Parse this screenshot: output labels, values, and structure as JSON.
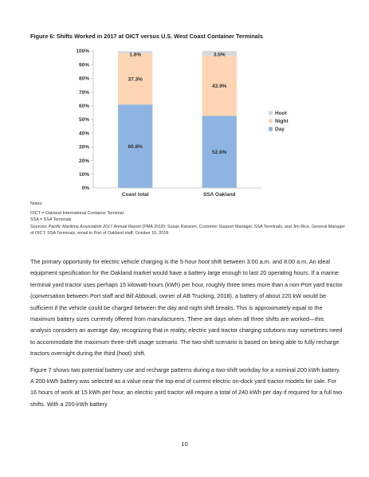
{
  "figure_title": "Figure 6: Shifts Worked in 2017 at OICT versus U.S. West Coast Container Terminals",
  "chart_data": {
    "type": "bar",
    "stacked": true,
    "categories": [
      "Coast total",
      "SSA Oakland"
    ],
    "series": [
      {
        "name": "Day",
        "values": [
          60.8,
          52.6
        ],
        "labels": [
          "60.8%",
          "52.6%"
        ],
        "color": "#8eb4e3"
      },
      {
        "name": "Night",
        "values": [
          37.3,
          43.9
        ],
        "labels": [
          "37.3%",
          "43.9%"
        ],
        "color": "#fcd5b5"
      },
      {
        "name": "Hoot",
        "values": [
          1.8,
          3.5
        ],
        "labels": [
          "1.8%",
          "3.5%"
        ],
        "color": "#d9d9d9"
      }
    ],
    "legend_order": [
      "Hoot",
      "Night",
      "Day"
    ],
    "legend_position": "right",
    "y_ticks": [
      "0%",
      "10%",
      "20%",
      "30%",
      "40%",
      "50%",
      "60%",
      "70%",
      "80%",
      "90%",
      "100%"
    ],
    "ylim": [
      0,
      100
    ],
    "grid": false
  },
  "notes": {
    "heading": "Notes:",
    "lines": [
      "OICT = Oakland International Container Terminal",
      "SSA = SSA Terminals"
    ],
    "sources_prefix": "Sources: ",
    "sources_italic": "Pacific Maritime Association 2017 Annual Report",
    "sources_rest": " (PMA 2018); Susan Ransom, Customer Support Manager, SSA Terminals, and Jim Rice, General Manager of OICT, SSA Terminals, email to Port of Oakland staff, October 16, 2018."
  },
  "body": {
    "p1_a": "The primary opportunity for electric vehicle charging is the 5-hour ",
    "p1_hoot": "hoot",
    "p1_b": " shift between 3:00 a.m. and 8:00 a.m. An ideal equipment specification for the Oakland market would have a battery large enough to last 20 operating hours. If a marine terminal yard tractor uses perhaps 15 kilowatt-hours (kWh) per hour, roughly three times more than a non-Port yard tractor (conversation between Port staff and Bill Abboudi, owner of AB Trucking, 2018), a battery of about 220 kW would be sufficient if the vehicle could be charged between the day and night shift breaks. This is approximately equal to the maximum battery sizes currently offered from manufacturers. There are days when all three shifts are worked—this analysis considers an average day, recognizing that in reality, electric yard tractor charging solutions may sometimes need to accommodate the maximum three-shift usage scenario. The two-shift scenario is based on being able to fully recharge tractors overnight during the third (hoot) shift.",
    "p2": "Figure 7 shows two potential battery use and recharge patterns during a two-shift workday for a nominal 200 kWh battery. A 200-kWh battery was selected as a value near the top-end of current electric on-dock yard tractor models for sale. For 16 hours of work at 15 kWh per hour, an electric yard tractor will require a total of 240 kWh per day if required for a full two shifts. With a 200-kWh battery"
  },
  "page_number": "10"
}
